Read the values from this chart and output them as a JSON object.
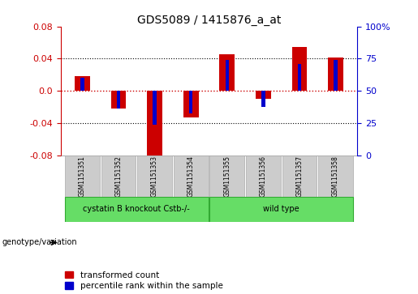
{
  "title": "GDS5089 / 1415876_a_at",
  "samples": [
    "GSM1151351",
    "GSM1151352",
    "GSM1151353",
    "GSM1151354",
    "GSM1151355",
    "GSM1151356",
    "GSM1151357",
    "GSM1151358"
  ],
  "red_values": [
    0.018,
    -0.022,
    -0.085,
    -0.033,
    0.045,
    -0.01,
    0.055,
    0.041
  ],
  "blue_values": [
    0.016,
    -0.022,
    -0.042,
    -0.028,
    0.038,
    -0.02,
    0.033,
    0.038
  ],
  "ylim": [
    -0.08,
    0.08
  ],
  "yticks_left": [
    -0.08,
    -0.04,
    0.0,
    0.04,
    0.08
  ],
  "group1_label": "cystatin B knockout Cstb-/-",
  "group2_label": "wild type",
  "group1_indices": [
    0,
    1,
    2,
    3
  ],
  "group2_indices": [
    4,
    5,
    6,
    7
  ],
  "genotype_label": "genotype/variation",
  "legend_red": "transformed count",
  "legend_blue": "percentile rank within the sample",
  "red_bar_width": 0.42,
  "blue_bar_width": 0.1,
  "red_color": "#cc0000",
  "blue_color": "#0000cc",
  "green_color": "#66dd66",
  "green_edge": "#33aa33",
  "bg_plot": "#ffffff",
  "bg_xtick": "#cccccc",
  "xtick_edge": "#aaaaaa"
}
